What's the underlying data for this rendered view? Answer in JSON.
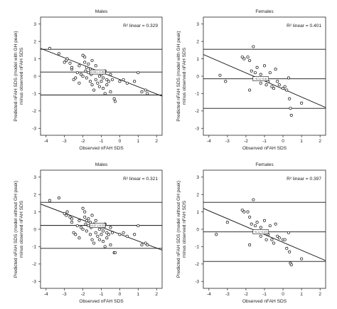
{
  "chart_data": [
    {
      "type": "scatter",
      "title": "Males",
      "xlabel": "Observed nFAH SDS",
      "ylabel": [
        "Predicted nFAH SDS (model with GH peak)",
        "minus observed nFAH SDS"
      ],
      "xlim": [
        -4.3,
        2.3
      ],
      "ylim": [
        -3.4,
        3.4
      ],
      "xticks": [
        -4,
        -3,
        -2,
        -1,
        0,
        1,
        2
      ],
      "yticks": [
        -3,
        -2,
        -1,
        0,
        1,
        2,
        3
      ],
      "r2_label": "R² linear = 0.329",
      "mean_line": 0.24,
      "upper_limit": 1.55,
      "lower_limit": -1.08,
      "ci_label": "-0.24 (−0.39)",
      "regression": {
        "x": [
          -4.3,
          2.3
        ],
        "y": [
          1.6,
          -1.15
        ]
      },
      "points": [
        [
          -3.8,
          1.6
        ],
        [
          -3.3,
          1.3
        ],
        [
          -3.0,
          0.8
        ],
        [
          -2.9,
          0.9
        ],
        [
          -2.85,
          1.0
        ],
        [
          -2.7,
          0.75
        ],
        [
          -2.6,
          0.4
        ],
        [
          -2.6,
          0.5
        ],
        [
          -2.5,
          -0.2
        ],
        [
          -2.4,
          -0.1
        ],
        [
          -2.3,
          0.2
        ],
        [
          -2.2,
          0.6
        ],
        [
          -2.2,
          -0.4
        ],
        [
          -2.1,
          0.1
        ],
        [
          -2.0,
          1.2
        ],
        [
          -2.0,
          0.0
        ],
        [
          -1.9,
          0.8
        ],
        [
          -1.9,
          1.1
        ],
        [
          -1.85,
          0.3
        ],
        [
          -1.8,
          0.5
        ],
        [
          -1.8,
          -0.1
        ],
        [
          -1.7,
          0.7
        ],
        [
          -1.7,
          0.2
        ],
        [
          -1.6,
          0.4
        ],
        [
          -1.6,
          -0.3
        ],
        [
          -1.55,
          0.1
        ],
        [
          -1.5,
          0.9
        ],
        [
          -1.5,
          -0.5
        ],
        [
          -1.4,
          0.3
        ],
        [
          -1.4,
          -0.8
        ],
        [
          -1.3,
          0.6
        ],
        [
          -1.3,
          -0.2
        ],
        [
          -1.2,
          0.2
        ],
        [
          -1.2,
          -0.4
        ],
        [
          -1.1,
          0.0
        ],
        [
          -1.1,
          -0.6
        ],
        [
          -1.0,
          0.1
        ],
        [
          -1.0,
          -0.3
        ],
        [
          -0.9,
          -0.1
        ],
        [
          -0.9,
          -0.7
        ],
        [
          -0.8,
          0.3
        ],
        [
          -0.8,
          -1.0
        ],
        [
          -0.7,
          -0.2
        ],
        [
          -0.7,
          -0.5
        ],
        [
          -0.6,
          -0.3
        ],
        [
          -0.5,
          0.1
        ],
        [
          -0.5,
          -0.9
        ],
        [
          -0.4,
          -0.2
        ],
        [
          -0.3,
          -1.3
        ],
        [
          -0.25,
          -1.45
        ],
        [
          0.0,
          -0.3
        ],
        [
          0.2,
          -0.2
        ],
        [
          0.4,
          -0.4
        ],
        [
          0.8,
          -0.3
        ],
        [
          1.0,
          0.2
        ],
        [
          1.2,
          -0.9
        ],
        [
          1.4,
          -0.8
        ],
        [
          1.5,
          -1.0
        ]
      ]
    },
    {
      "type": "scatter",
      "title": "Females",
      "xlabel": "Observed nFAH SDS",
      "ylabel": [
        "Predicted nFAH SDS (model with GH peak)",
        "minus observed nFAH SDS"
      ],
      "xlim": [
        -4.3,
        2.3
      ],
      "ylim": [
        -3.4,
        3.4
      ],
      "xticks": [
        -4,
        -3,
        -2,
        -1,
        0,
        1,
        2
      ],
      "yticks": [
        -3,
        -2,
        -1,
        0,
        1,
        2,
        3
      ],
      "r2_label": "R² linear = 0.401",
      "mean_line": -0.15,
      "upper_limit": 1.55,
      "lower_limit": -1.85,
      "ci_label": "−0.1 (−0.4)",
      "regression": {
        "x": [
          -4.3,
          2.3
        ],
        "y": [
          1.25,
          -1.8
        ]
      },
      "points": [
        [
          -3.4,
          0.05
        ],
        [
          -3.1,
          -0.3
        ],
        [
          -2.2,
          1.1
        ],
        [
          -2.1,
          1.0
        ],
        [
          -1.9,
          1.1
        ],
        [
          -1.8,
          0.9
        ],
        [
          -1.7,
          0.3
        ],
        [
          -1.6,
          1.7
        ],
        [
          -1.5,
          0.2
        ],
        [
          -1.4,
          0.5
        ],
        [
          -1.3,
          -0.1
        ],
        [
          -1.2,
          0.1
        ],
        [
          -1.2,
          -0.4
        ],
        [
          -1.0,
          0.6
        ],
        [
          -0.95,
          -0.2
        ],
        [
          -0.9,
          -0.5
        ],
        [
          -0.8,
          -0.3
        ],
        [
          -0.7,
          0.2
        ],
        [
          -0.6,
          -0.6
        ],
        [
          -0.5,
          -0.7
        ],
        [
          -0.4,
          0.4
        ],
        [
          -0.3,
          -0.3
        ],
        [
          -0.2,
          -0.5
        ],
        [
          0.0,
          -0.7
        ],
        [
          0.1,
          -0.6
        ],
        [
          0.2,
          -0.8
        ],
        [
          0.3,
          -0.1
        ],
        [
          0.35,
          -1.3
        ],
        [
          0.4,
          -1.85
        ],
        [
          0.45,
          -2.25
        ],
        [
          1.0,
          -1.55
        ],
        [
          -1.8,
          -0.8
        ]
      ]
    },
    {
      "type": "scatter",
      "title": "Males",
      "xlabel": "Observed nFAH SDS",
      "ylabel": [
        "Predicted nFAH SDS (model without GH peak)",
        "minus observed nFAH SDS"
      ],
      "xlim": [
        -4.3,
        2.3
      ],
      "ylim": [
        -3.4,
        3.4
      ],
      "xticks": [
        -4,
        -3,
        -2,
        -1,
        0,
        1,
        2
      ],
      "yticks": [
        -3,
        -2,
        -1,
        0,
        1,
        2,
        3
      ],
      "r2_label": "R² linear = 0.321",
      "mean_line": 0.22,
      "upper_limit": 1.55,
      "lower_limit": -1.1,
      "ci_label": "−0.27 (−0.37)",
      "regression": {
        "x": [
          -4.3,
          2.3
        ],
        "y": [
          1.45,
          -1.2
        ]
      },
      "points": [
        [
          -3.8,
          1.65
        ],
        [
          -3.3,
          1.8
        ],
        [
          -3.0,
          0.9
        ],
        [
          -2.9,
          0.8
        ],
        [
          -2.85,
          1.0
        ],
        [
          -2.7,
          0.7
        ],
        [
          -2.6,
          0.4
        ],
        [
          -2.6,
          0.6
        ],
        [
          -2.5,
          -0.2
        ],
        [
          -2.4,
          -0.3
        ],
        [
          -2.3,
          0.2
        ],
        [
          -2.2,
          0.5
        ],
        [
          -2.2,
          -0.5
        ],
        [
          -2.1,
          0.1
        ],
        [
          -2.0,
          1.2
        ],
        [
          -2.0,
          0.0
        ],
        [
          -1.9,
          0.7
        ],
        [
          -1.9,
          1.0
        ],
        [
          -1.85,
          0.3
        ],
        [
          -1.8,
          0.5
        ],
        [
          -1.8,
          -0.1
        ],
        [
          -1.7,
          0.6
        ],
        [
          -1.7,
          0.2
        ],
        [
          -1.6,
          0.4
        ],
        [
          -1.6,
          -0.3
        ],
        [
          -1.55,
          0.1
        ],
        [
          -1.5,
          0.8
        ],
        [
          -1.5,
          -0.6
        ],
        [
          -1.4,
          0.3
        ],
        [
          -1.4,
          -0.8
        ],
        [
          -1.3,
          0.5
        ],
        [
          -1.3,
          -0.2
        ],
        [
          -1.2,
          0.2
        ],
        [
          -1.2,
          -0.4
        ],
        [
          -1.1,
          0.0
        ],
        [
          -1.1,
          -0.6
        ],
        [
          -1.0,
          0.1
        ],
        [
          -1.0,
          -0.3
        ],
        [
          -0.9,
          -0.1
        ],
        [
          -0.9,
          -0.7
        ],
        [
          -0.8,
          0.3
        ],
        [
          -0.8,
          -1.0
        ],
        [
          -0.7,
          -0.2
        ],
        [
          -0.7,
          -0.5
        ],
        [
          -0.6,
          -0.3
        ],
        [
          -0.5,
          0.1
        ],
        [
          -0.5,
          -0.9
        ],
        [
          -0.4,
          -0.2
        ],
        [
          -0.3,
          -1.35
        ],
        [
          -0.25,
          -1.35
        ],
        [
          0.0,
          -0.3
        ],
        [
          0.2,
          -0.2
        ],
        [
          0.4,
          -0.4
        ],
        [
          0.8,
          -0.3
        ],
        [
          1.0,
          0.2
        ],
        [
          1.2,
          -0.9
        ],
        [
          1.4,
          -0.8
        ],
        [
          1.5,
          -0.9
        ]
      ]
    },
    {
      "type": "scatter",
      "title": "Females",
      "xlabel": "Observed nFAH SDS",
      "ylabel": [
        "Predicted nFAH SDS (model without GH peak)",
        "minus observed nFAH SDS"
      ],
      "xlim": [
        -4.3,
        2.3
      ],
      "ylim": [
        -3.4,
        3.4
      ],
      "xticks": [
        -4,
        -3,
        -2,
        -1,
        0,
        1,
        2
      ],
      "yticks": [
        -3,
        -2,
        -1,
        0,
        1,
        2,
        3
      ],
      "r2_label": "R² linear = 0.397",
      "mean_line": -0.15,
      "upper_limit": 1.55,
      "lower_limit": -1.85,
      "ci_label": "−0.1 (−0.47)",
      "regression": {
        "x": [
          -4.3,
          2.3
        ],
        "y": [
          1.2,
          -1.8
        ]
      },
      "points": [
        [
          -3.6,
          -0.3
        ],
        [
          -3.0,
          0.4
        ],
        [
          -2.2,
          1.1
        ],
        [
          -2.1,
          1.0
        ],
        [
          -1.9,
          1.0
        ],
        [
          -1.8,
          0.7
        ],
        [
          -1.7,
          0.3
        ],
        [
          -1.6,
          1.7
        ],
        [
          -1.5,
          0.2
        ],
        [
          -1.4,
          0.4
        ],
        [
          -1.3,
          -0.2
        ],
        [
          -1.2,
          0.1
        ],
        [
          -1.2,
          -0.4
        ],
        [
          -1.0,
          0.5
        ],
        [
          -0.95,
          -0.2
        ],
        [
          -0.9,
          -0.6
        ],
        [
          -0.8,
          -0.3
        ],
        [
          -0.7,
          0.2
        ],
        [
          -0.6,
          -0.6
        ],
        [
          -0.5,
          -0.8
        ],
        [
          -0.4,
          0.3
        ],
        [
          -0.3,
          -0.4
        ],
        [
          -0.2,
          -0.5
        ],
        [
          0.0,
          -0.6
        ],
        [
          0.1,
          -0.6
        ],
        [
          0.2,
          -1.1
        ],
        [
          0.3,
          -0.2
        ],
        [
          0.35,
          -1.3
        ],
        [
          0.4,
          -1.95
        ],
        [
          0.45,
          -2.05
        ],
        [
          1.0,
          -1.7
        ],
        [
          -1.8,
          -0.9
        ]
      ]
    }
  ]
}
